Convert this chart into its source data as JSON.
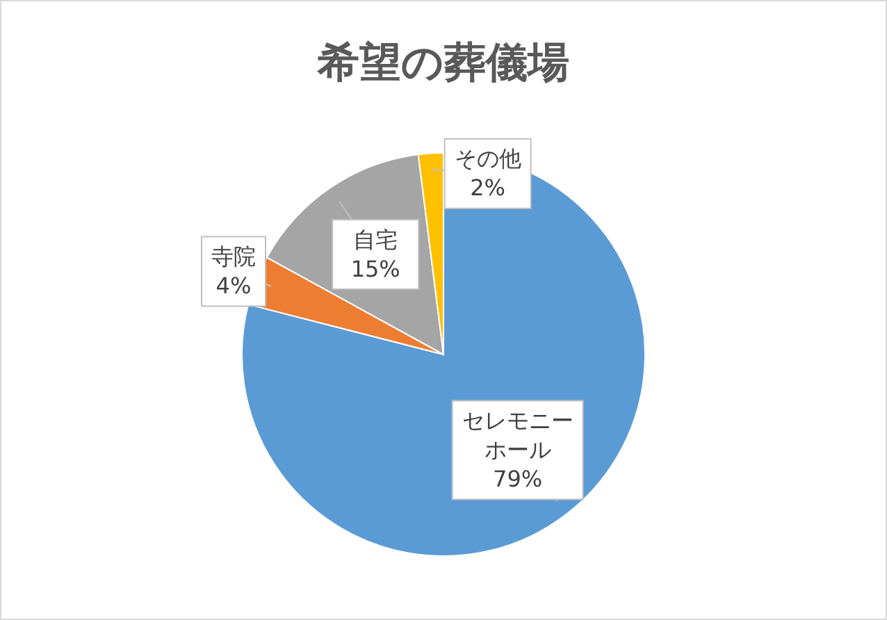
{
  "chart_data": {
    "type": "pie",
    "title": "希望の葬儀場",
    "categories": [
      "セレモニーホール",
      "寺院",
      "自宅",
      "その他"
    ],
    "values": [
      79,
      4,
      15,
      2
    ],
    "value_labels": [
      "79%",
      "4%",
      "15%",
      "2%"
    ],
    "colors": [
      "#5b9bd5",
      "#ed7d31",
      "#a5a5a5",
      "#ffc000"
    ]
  }
}
